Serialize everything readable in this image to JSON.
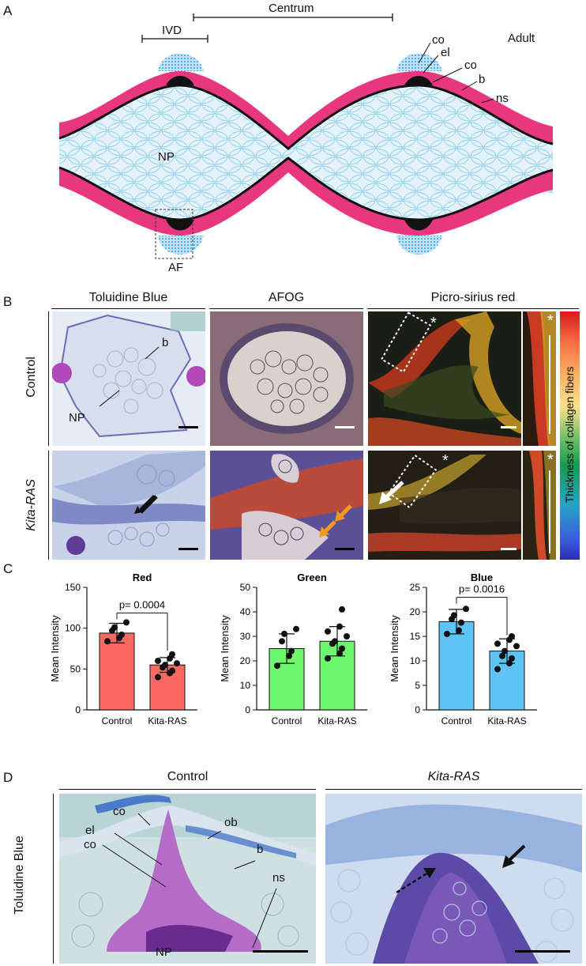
{
  "figure": {
    "panel_labels": {
      "a": "A",
      "b": "B",
      "c": "C",
      "d": "D"
    }
  },
  "panel_a": {
    "labels": {
      "ivd": "IVD",
      "centrum": "Centrum",
      "adult": "Adult",
      "co1": "co",
      "el": "el",
      "co2": "co",
      "b": "b",
      "ns": "ns",
      "np": "NP",
      "af": "AF"
    },
    "colors": {
      "bone": "#e8377f",
      "bone_inner": "#c04fd0",
      "notochord": "#ddeefa",
      "cell_line": "#7ec8e8",
      "endplate": "#1a6fd6"
    }
  },
  "panel_b": {
    "columns": [
      "Toluidine Blue",
      "AFOG",
      "Picro-sirius red"
    ],
    "rows": [
      "Control",
      "Kita-RAS"
    ],
    "annotations": {
      "b": "b",
      "np": "NP",
      "star": "*"
    },
    "colorbar_label": "Thickness of collagen fibers"
  },
  "panel_c": {
    "y_label": "Mean Intensity"
  },
  "chart_data": [
    {
      "type": "bar",
      "title": "Red",
      "categories": [
        "Control",
        "Kita-RAS"
      ],
      "values": [
        94,
        55
      ],
      "errors": [
        12,
        9
      ],
      "ylim": [
        0,
        150
      ],
      "yticks": [
        0,
        50,
        100,
        150
      ],
      "ylabel": "Mean Intensity",
      "color": "#fa6a63",
      "pvalue": "p= 0.0004",
      "points": [
        [
          84,
          88,
          92,
          97,
          101,
          107
        ],
        [
          40,
          45,
          48,
          52,
          55,
          57,
          60,
          63,
          68
        ]
      ]
    },
    {
      "type": "bar",
      "title": "Green",
      "categories": [
        "Control",
        "Kita-RAS"
      ],
      "values": [
        25,
        28
      ],
      "errors": [
        6,
        6
      ],
      "ylim": [
        0,
        50
      ],
      "yticks": [
        0,
        10,
        20,
        30,
        40,
        50
      ],
      "ylabel": "Mean Intensity",
      "color": "#6ef66e",
      "pvalue": "",
      "points": [
        [
          18,
          22,
          24,
          28,
          31,
          33
        ],
        [
          21,
          23,
          25,
          27,
          28,
          30,
          32,
          34,
          41
        ]
      ]
    },
    {
      "type": "bar",
      "title": "Blue",
      "categories": [
        "Control",
        "Kita-RAS"
      ],
      "values": [
        18,
        12
      ],
      "errors": [
        2.5,
        2.5
      ],
      "ylim": [
        0,
        25
      ],
      "yticks": [
        0,
        5,
        10,
        15,
        20,
        25
      ],
      "ylabel": "Mean Intensity",
      "color": "#5ec3f5",
      "pvalue": "p= 0.0016",
      "points": [
        [
          15.5,
          16.2,
          17.8,
          18.5,
          19.3,
          20.6
        ],
        [
          8.3,
          9.5,
          10.5,
          11.0,
          12.0,
          13.0,
          13.5,
          14.3,
          15.0
        ]
      ]
    }
  ],
  "panel_d": {
    "columns": [
      "Control",
      "Kita-RAS"
    ],
    "row_label": "Toluidine Blue",
    "labels": {
      "co1": "co",
      "el": "el",
      "co2": "co",
      "ob": "ob",
      "b": "b",
      "ns": "ns",
      "np": "NP"
    }
  }
}
